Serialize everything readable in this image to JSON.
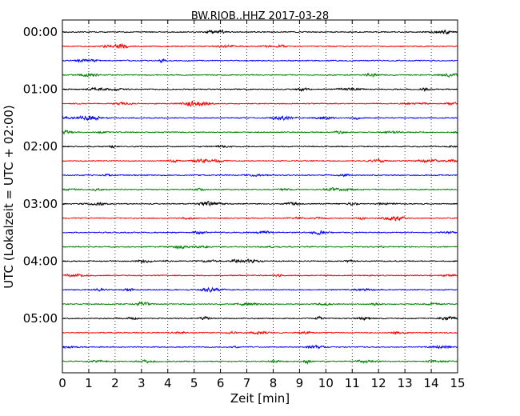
{
  "chart_data": {
    "type": "line",
    "title": "BW.RJOB..HHZ 2017-03-28",
    "xlabel": "Zeit  [min]",
    "ylabel": "UTC (Lokalzeit = UTC + 02:00)",
    "xlim": [
      0,
      15
    ],
    "x_ticks": [
      0,
      1,
      2,
      3,
      4,
      5,
      6,
      7,
      8,
      9,
      10,
      11,
      12,
      13,
      14,
      15
    ],
    "x_tick_labels": [
      "0",
      "1",
      "2",
      "3",
      "4",
      "5",
      "6",
      "7",
      "8",
      "9",
      "10",
      "11",
      "12",
      "13",
      "14",
      "15"
    ],
    "y_tick_labels": [
      "00:00",
      "01:00",
      "02:00",
      "03:00",
      "04:00",
      "05:00"
    ],
    "y_tick_rows": [
      0,
      4,
      8,
      12,
      16,
      20
    ],
    "row_interval_minutes": 15,
    "row_count": 24,
    "series_color_cycle": [
      "#000000",
      "#ff0000",
      "#0000ff",
      "#008000"
    ],
    "grid": {
      "vertical": true,
      "style": "dotted"
    },
    "traces": [
      {
        "start": "00:00",
        "color": "#000000"
      },
      {
        "start": "00:15",
        "color": "#ff0000"
      },
      {
        "start": "00:30",
        "color": "#0000ff"
      },
      {
        "start": "00:45",
        "color": "#008000"
      },
      {
        "start": "01:00",
        "color": "#000000"
      },
      {
        "start": "01:15",
        "color": "#ff0000"
      },
      {
        "start": "01:30",
        "color": "#0000ff"
      },
      {
        "start": "01:45",
        "color": "#008000"
      },
      {
        "start": "02:00",
        "color": "#000000"
      },
      {
        "start": "02:15",
        "color": "#ff0000"
      },
      {
        "start": "02:30",
        "color": "#0000ff"
      },
      {
        "start": "02:45",
        "color": "#008000"
      },
      {
        "start": "03:00",
        "color": "#000000"
      },
      {
        "start": "03:15",
        "color": "#ff0000"
      },
      {
        "start": "03:30",
        "color": "#0000ff"
      },
      {
        "start": "03:45",
        "color": "#008000"
      },
      {
        "start": "04:00",
        "color": "#000000"
      },
      {
        "start": "04:15",
        "color": "#ff0000"
      },
      {
        "start": "04:30",
        "color": "#0000ff"
      },
      {
        "start": "04:45",
        "color": "#008000"
      },
      {
        "start": "05:00",
        "color": "#000000"
      },
      {
        "start": "05:15",
        "color": "#ff0000"
      },
      {
        "start": "05:30",
        "color": "#0000ff"
      },
      {
        "start": "05:45",
        "color": "#008000"
      }
    ]
  }
}
